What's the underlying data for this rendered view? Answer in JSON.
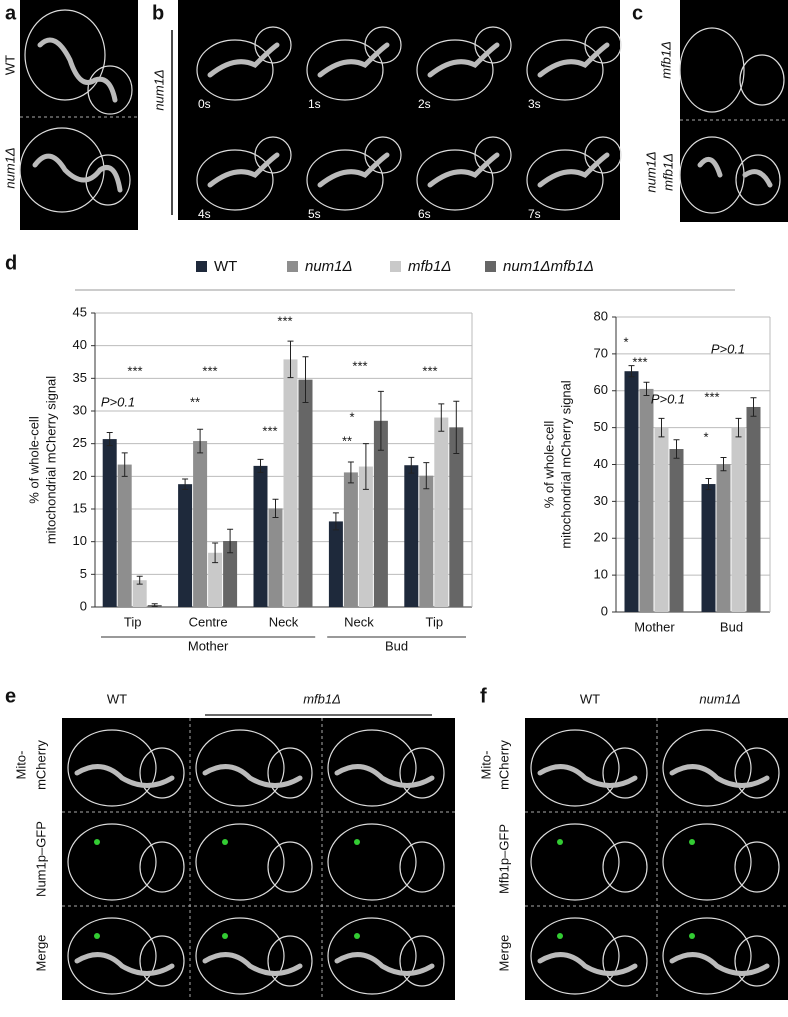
{
  "panel_labels": [
    "a",
    "b",
    "c",
    "d",
    "e",
    "f"
  ],
  "panel_a": {
    "rows": [
      "WT",
      "num1Δ"
    ]
  },
  "panel_b": {
    "strain": "num1Δ",
    "times": [
      "0s",
      "1s",
      "2s",
      "3s",
      "4s",
      "5s",
      "6s",
      "7s"
    ]
  },
  "panel_c": {
    "rows": [
      "mfb1Δ",
      [
        "num1Δ",
        "mfb1Δ"
      ]
    ]
  },
  "panel_e": {
    "columns": [
      "WT",
      "mfb1Δ"
    ],
    "rows": [
      [
        "Mito-",
        "mCherry"
      ],
      "Num1p–GFP",
      "Merge"
    ]
  },
  "panel_f": {
    "columns": [
      "WT",
      "num1Δ"
    ],
    "rows": [
      [
        "Mito-",
        "mCherry"
      ],
      "Mfb1p–GFP",
      "Merge"
    ]
  },
  "chart_data": [
    {
      "type": "bar",
      "y_label": [
        "% of whole-cell",
        "mitochondrial mCherry signal"
      ],
      "categories": [
        "Tip",
        "Centre",
        "Neck",
        "Neck",
        "Tip"
      ],
      "groups": [
        {
          "name": "Mother",
          "categories": [
            0,
            1,
            2
          ]
        },
        {
          "name": "Bud",
          "categories": [
            3,
            4
          ]
        }
      ],
      "series": [
        {
          "name": "WT",
          "color": "#1e293b",
          "values": [
            25.7,
            18.8,
            21.6,
            13.1,
            21.7
          ],
          "errors": [
            1.0,
            0.8,
            1.0,
            1.3,
            1.2
          ]
        },
        {
          "name": "num1Δ",
          "color": "#8e8e8e",
          "values": [
            21.8,
            25.4,
            15.1,
            20.6,
            20.1
          ],
          "errors": [
            1.8,
            1.8,
            1.4,
            1.6,
            2.0
          ]
        },
        {
          "name": "mfb1Δ",
          "color": "#c9c9c9",
          "values": [
            4.1,
            8.3,
            37.9,
            21.5,
            29.0
          ],
          "errors": [
            0.6,
            1.5,
            2.8,
            3.5,
            2.1
          ]
        },
        {
          "name": "num1Δmfb1Δ",
          "color": "#666666",
          "values": [
            0.3,
            10.1,
            34.8,
            28.5,
            27.5
          ],
          "errors": [
            0.2,
            1.8,
            3.5,
            4.5,
            4.0
          ]
        }
      ],
      "ylim": [
        0,
        45
      ],
      "yticks": [
        0,
        5,
        10,
        15,
        20,
        25,
        30,
        35,
        40,
        45
      ],
      "grid": true,
      "annotations": [
        "***",
        "P>0.1",
        "***",
        "**",
        "***",
        "***",
        "***",
        "*",
        "**",
        "***"
      ]
    },
    {
      "type": "bar",
      "y_label": [
        "% of whole-cell",
        "mitochondrial mCherry signal"
      ],
      "categories": [
        "Mother",
        "Bud"
      ],
      "series": [
        {
          "color": "#1e293b",
          "values": [
            65.3,
            34.7
          ],
          "errors": [
            1.5,
            1.5
          ]
        },
        {
          "color": "#8e8e8e",
          "values": [
            60.5,
            40.1
          ],
          "errors": [
            1.8,
            1.8
          ]
        },
        {
          "color": "#c9c9c9",
          "values": [
            50.0,
            50.0
          ],
          "errors": [
            2.5,
            2.5
          ]
        },
        {
          "color": "#666666",
          "values": [
            44.2,
            55.6
          ],
          "errors": [
            2.5,
            2.5
          ]
        }
      ],
      "ylim": [
        0,
        80
      ],
      "yticks": [
        0,
        10,
        20,
        30,
        40,
        50,
        60,
        70,
        80
      ],
      "grid": true,
      "annotations": [
        "*",
        "***",
        "P>0.1",
        "P>0.1",
        "***",
        "*"
      ]
    }
  ]
}
